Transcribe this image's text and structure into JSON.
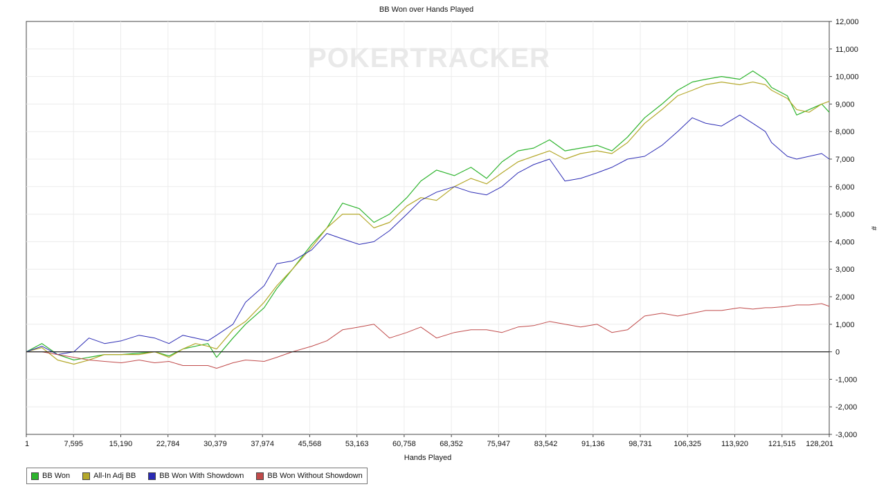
{
  "chart_data": {
    "type": "line",
    "title": "BB Won over Hands Played",
    "xlabel": "Hands Played",
    "ylabel": "#",
    "watermark": "POKERTRACKER",
    "x_ticks": [
      "1",
      "7,595",
      "15,190",
      "22,784",
      "30,379",
      "37,974",
      "45,568",
      "53,163",
      "60,758",
      "68,352",
      "75,947",
      "83,542",
      "91,136",
      "98,731",
      "106,325",
      "113,920",
      "121,515",
      "128,201"
    ],
    "xlim": [
      1,
      128201
    ],
    "ylim": [
      -3000,
      12000
    ],
    "y_ticks": [
      "12,000",
      "11,000",
      "10,000",
      "9,000",
      "8,000",
      "7,000",
      "6,000",
      "5,000",
      "4,000",
      "3,000",
      "2,000",
      "1,000",
      "0",
      "-1,000",
      "-2,000",
      "-3,000"
    ],
    "y_tick_values": [
      12000,
      11000,
      10000,
      9000,
      8000,
      7000,
      6000,
      5000,
      4000,
      3000,
      2000,
      1000,
      0,
      -1000,
      -2000,
      -3000
    ],
    "grid": true,
    "legend_position": "bottom-left",
    "series": [
      {
        "name": "BB Won",
        "color": "#2db42d",
        "x": [
          1,
          2500,
          5000,
          7595,
          10000,
          12500,
          15190,
          18000,
          20500,
          22784,
          25000,
          27000,
          29000,
          30379,
          33000,
          35000,
          37974,
          40000,
          42500,
          45568,
          48000,
          50500,
          53163,
          55500,
          58000,
          60758,
          63000,
          65500,
          68352,
          71000,
          73500,
          75947,
          78500,
          81000,
          83542,
          86000,
          88500,
          91136,
          93500,
          96000,
          98731,
          101500,
          104000,
          106325,
          108500,
          111000,
          113920,
          116000,
          118000,
          119000,
          121515,
          123000,
          125000,
          127000,
          128201
        ],
        "y": [
          0,
          300,
          -100,
          -300,
          -200,
          -100,
          -100,
          -50,
          0,
          -150,
          100,
          200,
          300,
          -200,
          500,
          1000,
          1600,
          2300,
          3000,
          3900,
          4500,
          5400,
          5200,
          4700,
          5000,
          5600,
          6200,
          6600,
          6400,
          6700,
          6300,
          6900,
          7300,
          7400,
          7700,
          7300,
          7400,
          7500,
          7300,
          7800,
          8500,
          9000,
          9500,
          9800,
          9900,
          10000,
          9900,
          10200,
          9900,
          9600,
          9300,
          8600,
          8800,
          9000,
          8700
        ],
        "line_width": 1.2
      },
      {
        "name": "All-In Adj BB",
        "color": "#b4a82a",
        "x": [
          1,
          2500,
          5000,
          7595,
          10000,
          12500,
          15190,
          18000,
          20500,
          22784,
          25000,
          27000,
          29000,
          30379,
          33000,
          35000,
          37974,
          40000,
          42500,
          45568,
          48000,
          50500,
          53163,
          55500,
          58000,
          60758,
          63000,
          65500,
          68352,
          71000,
          73500,
          75947,
          78500,
          81000,
          83542,
          86000,
          88500,
          91136,
          93500,
          96000,
          98731,
          101500,
          104000,
          106325,
          108500,
          111000,
          113920,
          116000,
          118000,
          119000,
          121515,
          123000,
          125000,
          127000,
          128201
        ],
        "y": [
          0,
          150,
          -300,
          -450,
          -300,
          -100,
          -100,
          -100,
          0,
          -200,
          100,
          300,
          200,
          100,
          800,
          1100,
          1800,
          2400,
          3000,
          3800,
          4500,
          5000,
          5000,
          4500,
          4700,
          5300,
          5600,
          5500,
          6000,
          6300,
          6100,
          6500,
          6900,
          7100,
          7300,
          7000,
          7200,
          7300,
          7200,
          7600,
          8300,
          8800,
          9300,
          9500,
          9700,
          9800,
          9700,
          9800,
          9700,
          9500,
          9200,
          8800,
          8700,
          9000,
          9100
        ],
        "line_width": 1.2
      },
      {
        "name": "BB Won With Showdown",
        "color": "#2a2ab4",
        "x": [
          1,
          2500,
          5000,
          7595,
          10000,
          12500,
          15190,
          18000,
          20500,
          22784,
          25000,
          27000,
          29000,
          30379,
          33000,
          35000,
          37974,
          40000,
          42500,
          45568,
          48000,
          50500,
          53163,
          55500,
          58000,
          60758,
          63000,
          65500,
          68352,
          71000,
          73500,
          75947,
          78500,
          81000,
          83542,
          86000,
          88500,
          91136,
          93500,
          96000,
          98731,
          101500,
          104000,
          106325,
          108500,
          111000,
          113920,
          116000,
          118000,
          119000,
          121515,
          123000,
          125000,
          127000,
          128201
        ],
        "y": [
          0,
          200,
          -100,
          0,
          500,
          300,
          400,
          600,
          500,
          300,
          600,
          500,
          400,
          600,
          1000,
          1800,
          2400,
          3200,
          3300,
          3700,
          4300,
          4100,
          3900,
          4000,
          4400,
          5000,
          5500,
          5800,
          6000,
          5800,
          5700,
          6000,
          6500,
          6800,
          7000,
          6200,
          6300,
          6500,
          6700,
          7000,
          7100,
          7500,
          8000,
          8500,
          8300,
          8200,
          8600,
          8300,
          8000,
          7600,
          7100,
          7000,
          7100,
          7200,
          7000
        ],
        "line_width": 1.0
      },
      {
        "name": "BB Won Without Showdown",
        "color": "#c04a4a",
        "x": [
          1,
          2500,
          5000,
          7595,
          10000,
          12500,
          15190,
          18000,
          20500,
          22784,
          25000,
          27000,
          29000,
          30379,
          33000,
          35000,
          37974,
          40000,
          42500,
          45568,
          48000,
          50500,
          53163,
          55500,
          58000,
          60758,
          63000,
          65500,
          68352,
          71000,
          73500,
          75947,
          78500,
          81000,
          83542,
          86000,
          88500,
          91136,
          93500,
          96000,
          98731,
          101500,
          104000,
          106325,
          108500,
          111000,
          113920,
          116000,
          118000,
          119000,
          121515,
          123000,
          125000,
          127000,
          128201
        ],
        "y": [
          0,
          0,
          -100,
          -200,
          -300,
          -350,
          -400,
          -300,
          -400,
          -350,
          -500,
          -500,
          -500,
          -600,
          -400,
          -300,
          -350,
          -200,
          0,
          200,
          400,
          800,
          900,
          1000,
          500,
          700,
          900,
          500,
          700,
          800,
          800,
          700,
          900,
          950,
          1100,
          1000,
          900,
          1000,
          700,
          800,
          1300,
          1400,
          1300,
          1400,
          1500,
          1500,
          1600,
          1550,
          1600,
          1600,
          1650,
          1700,
          1700,
          1750,
          1650
        ],
        "line_width": 1.0
      }
    ]
  }
}
